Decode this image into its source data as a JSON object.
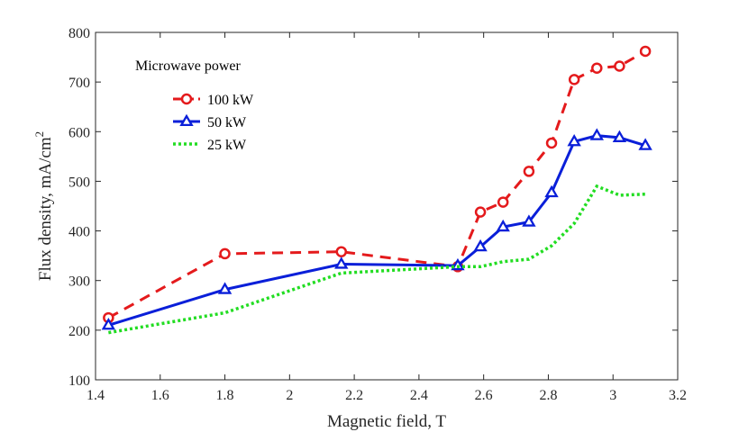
{
  "chart_data": {
    "type": "line",
    "title": "",
    "xlabel": "Magnetic field, T",
    "ylabel_main": "Flux density, mA/cm",
    "ylabel_sup": "2",
    "xlim": [
      1.4,
      3.2
    ],
    "ylim": [
      100,
      800
    ],
    "xticks": [
      "1.4",
      "1.6",
      "1.8",
      "2",
      "2.2",
      "2.4",
      "2.6",
      "2.8",
      "3",
      "3.2"
    ],
    "yticks": [
      "100",
      "200",
      "300",
      "400",
      "500",
      "600",
      "700",
      "800"
    ],
    "grid": false,
    "legend_title": "Microwave power",
    "legend_placement": "top-left",
    "series": [
      {
        "name": "100 kW",
        "color": "#e41a1c",
        "line_style": "dashed",
        "marker": "circle",
        "x": [
          1.44,
          1.8,
          2.16,
          2.52,
          2.59,
          2.66,
          2.74,
          2.81,
          2.88,
          2.95,
          3.02,
          3.1
        ],
        "y": [
          225,
          354,
          358,
          328,
          438,
          458,
          520,
          577,
          705,
          728,
          732,
          762
        ]
      },
      {
        "name": "50   kW",
        "color": "#0a1fd9",
        "line_style": "solid",
        "marker": "triangle",
        "x": [
          1.44,
          1.8,
          2.16,
          2.52,
          2.59,
          2.66,
          2.74,
          2.81,
          2.88,
          2.95,
          3.02,
          3.1
        ],
        "y": [
          210,
          282,
          333,
          330,
          368,
          408,
          418,
          477,
          580,
          592,
          588,
          572
        ]
      },
      {
        "name": "25   kW",
        "color": "#22dd22",
        "line_style": "dotted",
        "marker": "none",
        "x": [
          1.44,
          1.8,
          2.16,
          2.52,
          2.59,
          2.66,
          2.74,
          2.81,
          2.88,
          2.95,
          3.02,
          3.1
        ],
        "y": [
          195,
          235,
          315,
          328,
          328,
          338,
          343,
          370,
          415,
          490,
          472,
          474
        ]
      }
    ]
  }
}
